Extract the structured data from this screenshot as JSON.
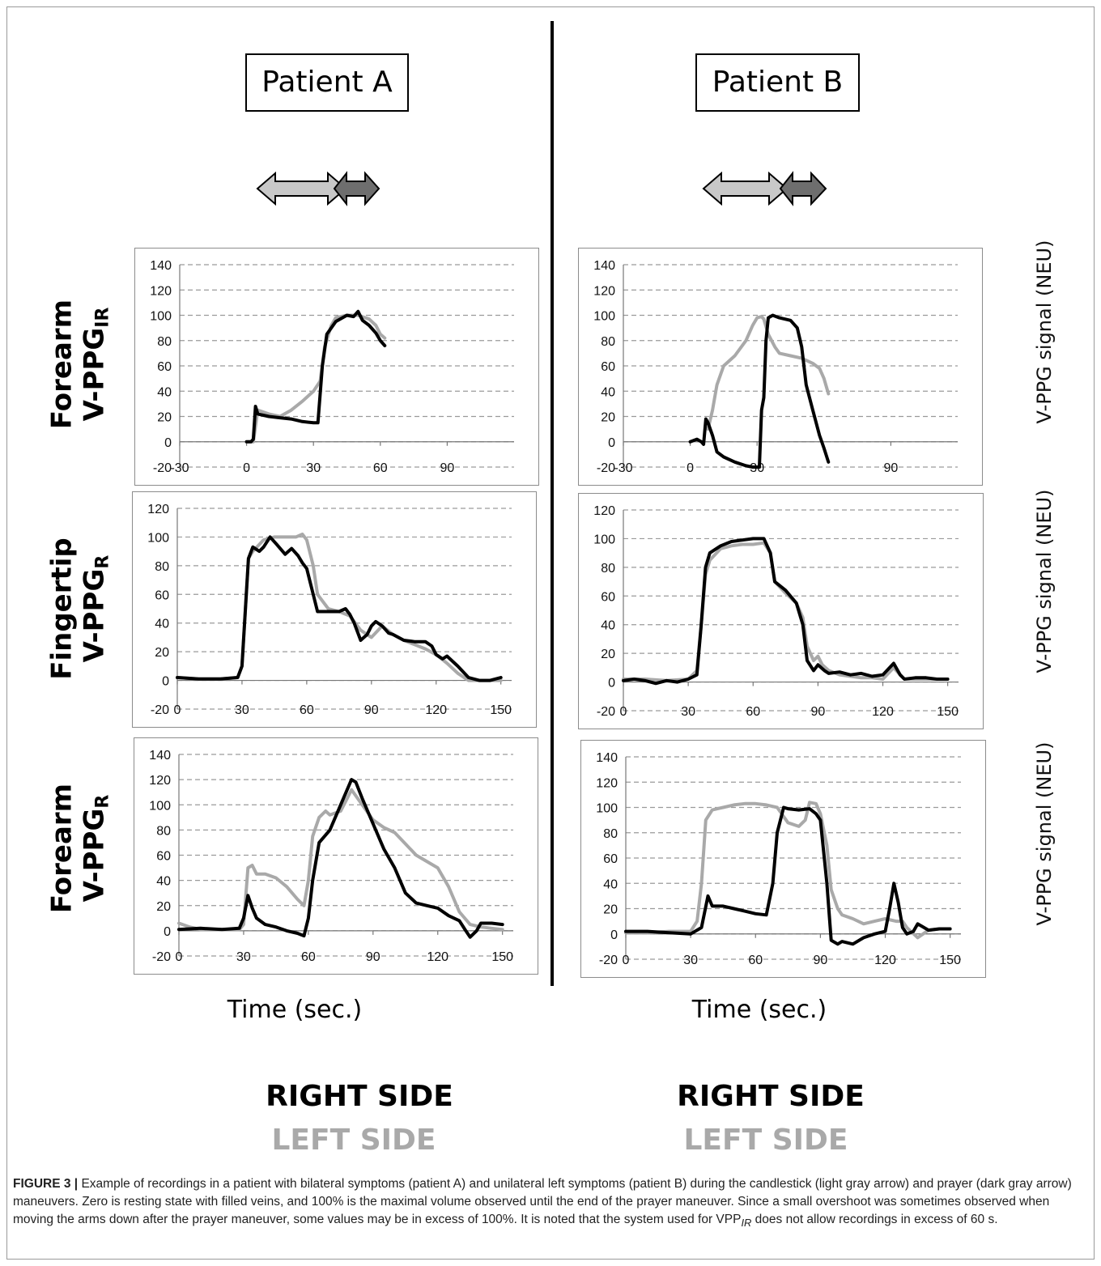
{
  "patients": [
    {
      "label": "Patient A",
      "right_side": "RIGHT SIDE",
      "left_side": "LEFT SIDE",
      "time_label": "Time (sec.)"
    },
    {
      "label": "Patient B",
      "right_side": "RIGHT SIDE",
      "left_side": "LEFT SIDE",
      "time_label": "Time (sec.)"
    }
  ],
  "rows": [
    {
      "line1": "Forearm",
      "line2": "V-PPG",
      "sub": "IR",
      "ytitle": "V-PPG signal (NEU)"
    },
    {
      "line1": "Fingertip",
      "line2": "V-PPG",
      "sub": "R",
      "ytitle": "V-PPG signal (NEU)"
    },
    {
      "line1": "Forearm",
      "line2": "V-PPG",
      "sub": "R",
      "ytitle": "V-PPG signal (NEU)"
    }
  ],
  "colors": {
    "right": "#000000",
    "left": "#a9a9a9",
    "arrow_candlestick": "#c8c8c8",
    "arrow_prayer": "#6e6e6e"
  },
  "caption": {
    "label": "FIGURE 3 |",
    "text": " Example of recordings in a patient with bilateral symptoms (patient A) and unilateral left symptoms (patient B) during the candlestick (light gray arrow) and prayer (dark gray arrow) maneuvers. Zero is resting state with filled veins, and 100% is the maximal volume observed until the end of the prayer maneuver. Since a small overshoot was sometimes observed when moving the arms down after the prayer maneuver, some values may be in excess of 100%. It is noted that the system used for VPP",
    "sub": "IR",
    "text2": " does not allow recordings in excess of 60 s."
  },
  "chart_data": [
    {
      "id": "A-forearm-IR",
      "type": "line",
      "xlim": [
        -30,
        120
      ],
      "ylim": [
        -20,
        140
      ],
      "xticks": [
        -30,
        0,
        30,
        60,
        90
      ],
      "yticks": [
        -20,
        0,
        20,
        40,
        60,
        80,
        100,
        120,
        140
      ],
      "grid": true,
      "series": [
        {
          "name": "LEFT SIDE",
          "x": [
            0,
            3,
            5,
            10,
            15,
            20,
            25,
            30,
            33,
            35,
            38,
            40,
            45,
            50,
            55,
            58,
            60,
            62
          ],
          "y": [
            0,
            0,
            25,
            22,
            20,
            25,
            32,
            40,
            48,
            75,
            92,
            98,
            100,
            100,
            97,
            92,
            85,
            82
          ]
        },
        {
          "name": "RIGHT SIDE",
          "x": [
            0,
            2,
            3,
            4,
            5,
            10,
            15,
            20,
            25,
            30,
            32,
            34,
            36,
            40,
            45,
            48,
            50,
            52,
            55,
            58,
            60,
            62
          ],
          "y": [
            0,
            0,
            2,
            28,
            22,
            20,
            19,
            18,
            16,
            15,
            15,
            60,
            85,
            95,
            100,
            99,
            103,
            96,
            92,
            86,
            80,
            76
          ]
        }
      ]
    },
    {
      "id": "B-forearm-IR",
      "type": "line",
      "xlim": [
        -30,
        120
      ],
      "ylim": [
        -20,
        140
      ],
      "xticks": [
        -30,
        0,
        30,
        90
      ],
      "yticks": [
        -20,
        0,
        20,
        40,
        60,
        80,
        100,
        120,
        140
      ],
      "grid": true,
      "series": [
        {
          "name": "LEFT SIDE",
          "x": [
            8,
            10,
            12,
            15,
            20,
            25,
            28,
            30,
            32,
            33,
            35,
            38,
            40,
            45,
            50,
            55,
            58,
            60,
            62
          ],
          "y": [
            10,
            25,
            45,
            60,
            68,
            80,
            92,
            98,
            99,
            97,
            85,
            75,
            70,
            68,
            66,
            62,
            58,
            50,
            38
          ]
        },
        {
          "name": "RIGHT SIDE",
          "x": [
            0,
            3,
            5,
            6,
            7,
            8,
            10,
            12,
            15,
            20,
            25,
            28,
            31,
            32,
            33,
            34,
            35,
            37,
            40,
            45,
            48,
            50,
            52,
            55,
            58,
            60,
            62
          ],
          "y": [
            0,
            2,
            0,
            -2,
            18,
            15,
            5,
            -8,
            -12,
            -16,
            -19,
            -20,
            -20,
            25,
            35,
            80,
            98,
            100,
            98,
            96,
            90,
            75,
            45,
            25,
            5,
            -5,
            -16
          ]
        }
      ]
    },
    {
      "id": "A-fingertip-R",
      "type": "line",
      "xlim": [
        0,
        155
      ],
      "ylim": [
        -20,
        120
      ],
      "xticks": [
        0,
        30,
        60,
        90,
        120,
        150
      ],
      "yticks": [
        -20,
        0,
        20,
        40,
        60,
        80,
        100,
        120
      ],
      "grid": true,
      "series": [
        {
          "name": "LEFT SIDE",
          "x": [
            0,
            10,
            20,
            28,
            30,
            33,
            35,
            40,
            45,
            50,
            55,
            58,
            60,
            63,
            65,
            70,
            75,
            80,
            85,
            90,
            95,
            100,
            105,
            110,
            115,
            120,
            125,
            130,
            135,
            140,
            145,
            150
          ],
          "y": [
            2,
            1,
            1,
            2,
            10,
            85,
            90,
            98,
            100,
            100,
            100,
            102,
            98,
            80,
            60,
            50,
            48,
            45,
            35,
            30,
            38,
            32,
            28,
            25,
            22,
            18,
            12,
            5,
            0,
            0,
            0,
            0
          ]
        },
        {
          "name": "RIGHT SIDE",
          "x": [
            0,
            10,
            20,
            28,
            30,
            33,
            35,
            38,
            40,
            43,
            46,
            50,
            53,
            56,
            58,
            60,
            63,
            65,
            70,
            75,
            78,
            80,
            82,
            85,
            88,
            90,
            92,
            95,
            98,
            100,
            105,
            110,
            115,
            118,
            120,
            123,
            125,
            130,
            135,
            140,
            145,
            150
          ],
          "y": [
            2,
            1,
            1,
            2,
            10,
            85,
            93,
            90,
            93,
            100,
            95,
            88,
            92,
            87,
            82,
            78,
            60,
            48,
            48,
            48,
            50,
            46,
            40,
            28,
            32,
            38,
            41,
            38,
            33,
            32,
            28,
            27,
            27,
            24,
            18,
            15,
            17,
            10,
            2,
            0,
            0,
            2
          ]
        }
      ]
    },
    {
      "id": "B-fingertip-R",
      "type": "line",
      "xlim": [
        0,
        155
      ],
      "ylim": [
        -20,
        120
      ],
      "xticks": [
        0,
        30,
        60,
        90,
        120,
        150
      ],
      "yticks": [
        -20,
        0,
        20,
        40,
        60,
        80,
        100,
        120
      ],
      "grid": true,
      "series": [
        {
          "name": "LEFT SIDE",
          "x": [
            0,
            10,
            20,
            30,
            34,
            36,
            38,
            40,
            45,
            50,
            55,
            60,
            65,
            68,
            70,
            75,
            80,
            83,
            85,
            88,
            90,
            92,
            95,
            100,
            105,
            110,
            115,
            120,
            125,
            128,
            130,
            135,
            140,
            145,
            150
          ],
          "y": [
            2,
            2,
            1,
            2,
            8,
            40,
            75,
            85,
            93,
            95,
            96,
            96,
            97,
            90,
            70,
            62,
            55,
            45,
            25,
            15,
            18,
            12,
            8,
            5,
            4,
            3,
            3,
            2,
            10,
            5,
            2,
            2,
            2,
            2,
            2
          ]
        },
        {
          "name": "RIGHT SIDE",
          "x": [
            0,
            5,
            10,
            15,
            20,
            25,
            30,
            34,
            36,
            38,
            40,
            45,
            50,
            55,
            60,
            65,
            68,
            70,
            75,
            80,
            83,
            85,
            88,
            90,
            93,
            95,
            100,
            105,
            110,
            115,
            120,
            125,
            128,
            130,
            135,
            140,
            145,
            150
          ],
          "y": [
            1,
            2,
            1,
            -1,
            1,
            0,
            2,
            5,
            40,
            80,
            90,
            95,
            98,
            99,
            100,
            100,
            90,
            70,
            64,
            55,
            40,
            15,
            8,
            12,
            8,
            6,
            7,
            5,
            6,
            4,
            5,
            13,
            5,
            2,
            3,
            3,
            2,
            2
          ]
        }
      ]
    },
    {
      "id": "A-forearm-R",
      "type": "line",
      "xlim": [
        0,
        155
      ],
      "ylim": [
        -20,
        140
      ],
      "xticks": [
        0,
        30,
        60,
        90,
        120,
        150
      ],
      "yticks": [
        -20,
        0,
        20,
        40,
        60,
        80,
        100,
        120,
        140
      ],
      "grid": true,
      "series": [
        {
          "name": "LEFT SIDE",
          "x": [
            0,
            5,
            10,
            20,
            28,
            30,
            32,
            34,
            36,
            40,
            45,
            50,
            55,
            58,
            60,
            62,
            65,
            68,
            70,
            75,
            78,
            80,
            85,
            90,
            95,
            100,
            110,
            120,
            125,
            130,
            135,
            140,
            145,
            150
          ],
          "y": [
            6,
            3,
            1,
            1,
            1,
            5,
            50,
            52,
            45,
            45,
            42,
            35,
            25,
            20,
            40,
            75,
            90,
            95,
            92,
            95,
            105,
            112,
            100,
            88,
            82,
            78,
            60,
            50,
            35,
            15,
            5,
            3,
            2,
            1
          ]
        },
        {
          "name": "RIGHT SIDE",
          "x": [
            0,
            10,
            20,
            28,
            30,
            32,
            34,
            36,
            40,
            45,
            50,
            55,
            58,
            60,
            62,
            65,
            70,
            75,
            80,
            82,
            85,
            90,
            95,
            100,
            105,
            110,
            115,
            120,
            125,
            130,
            133,
            135,
            138,
            140,
            145,
            150
          ],
          "y": [
            1,
            2,
            1,
            2,
            10,
            28,
            18,
            10,
            5,
            3,
            0,
            -2,
            -4,
            10,
            40,
            70,
            80,
            100,
            120,
            118,
            105,
            85,
            65,
            50,
            30,
            22,
            20,
            18,
            12,
            8,
            0,
            -5,
            0,
            6,
            6,
            5
          ]
        }
      ]
    },
    {
      "id": "B-forearm-R",
      "type": "line",
      "xlim": [
        0,
        155
      ],
      "ylim": [
        -20,
        140
      ],
      "xticks": [
        0,
        30,
        60,
        90,
        120,
        150
      ],
      "yticks": [
        -20,
        0,
        20,
        40,
        60,
        80,
        100,
        120,
        140
      ],
      "grid": true,
      "series": [
        {
          "name": "LEFT SIDE",
          "x": [
            0,
            10,
            20,
            30,
            33,
            35,
            37,
            40,
            45,
            50,
            55,
            60,
            65,
            70,
            75,
            80,
            83,
            85,
            88,
            90,
            93,
            95,
            98,
            100,
            105,
            110,
            115,
            120,
            125,
            128,
            130,
            135,
            140,
            145,
            150
          ],
          "y": [
            1,
            1,
            2,
            2,
            10,
            40,
            90,
            98,
            100,
            102,
            103,
            103,
            102,
            100,
            88,
            85,
            90,
            104,
            103,
            95,
            70,
            35,
            20,
            15,
            12,
            8,
            10,
            12,
            10,
            10,
            5,
            -3,
            3,
            4,
            4
          ]
        },
        {
          "name": "RIGHT SIDE",
          "x": [
            0,
            10,
            20,
            30,
            35,
            38,
            40,
            45,
            50,
            55,
            60,
            65,
            68,
            70,
            73,
            75,
            80,
            85,
            88,
            90,
            93,
            95,
            98,
            100,
            105,
            110,
            115,
            120,
            122,
            124,
            126,
            128,
            130,
            133,
            135,
            140,
            145,
            150
          ],
          "y": [
            2,
            2,
            1,
            0,
            5,
            30,
            22,
            22,
            20,
            18,
            16,
            15,
            40,
            80,
            100,
            99,
            98,
            99,
            95,
            90,
            40,
            -5,
            -8,
            -6,
            -8,
            -3,
            0,
            2,
            20,
            40,
            25,
            5,
            0,
            2,
            8,
            3,
            4,
            4
          ]
        }
      ]
    }
  ]
}
